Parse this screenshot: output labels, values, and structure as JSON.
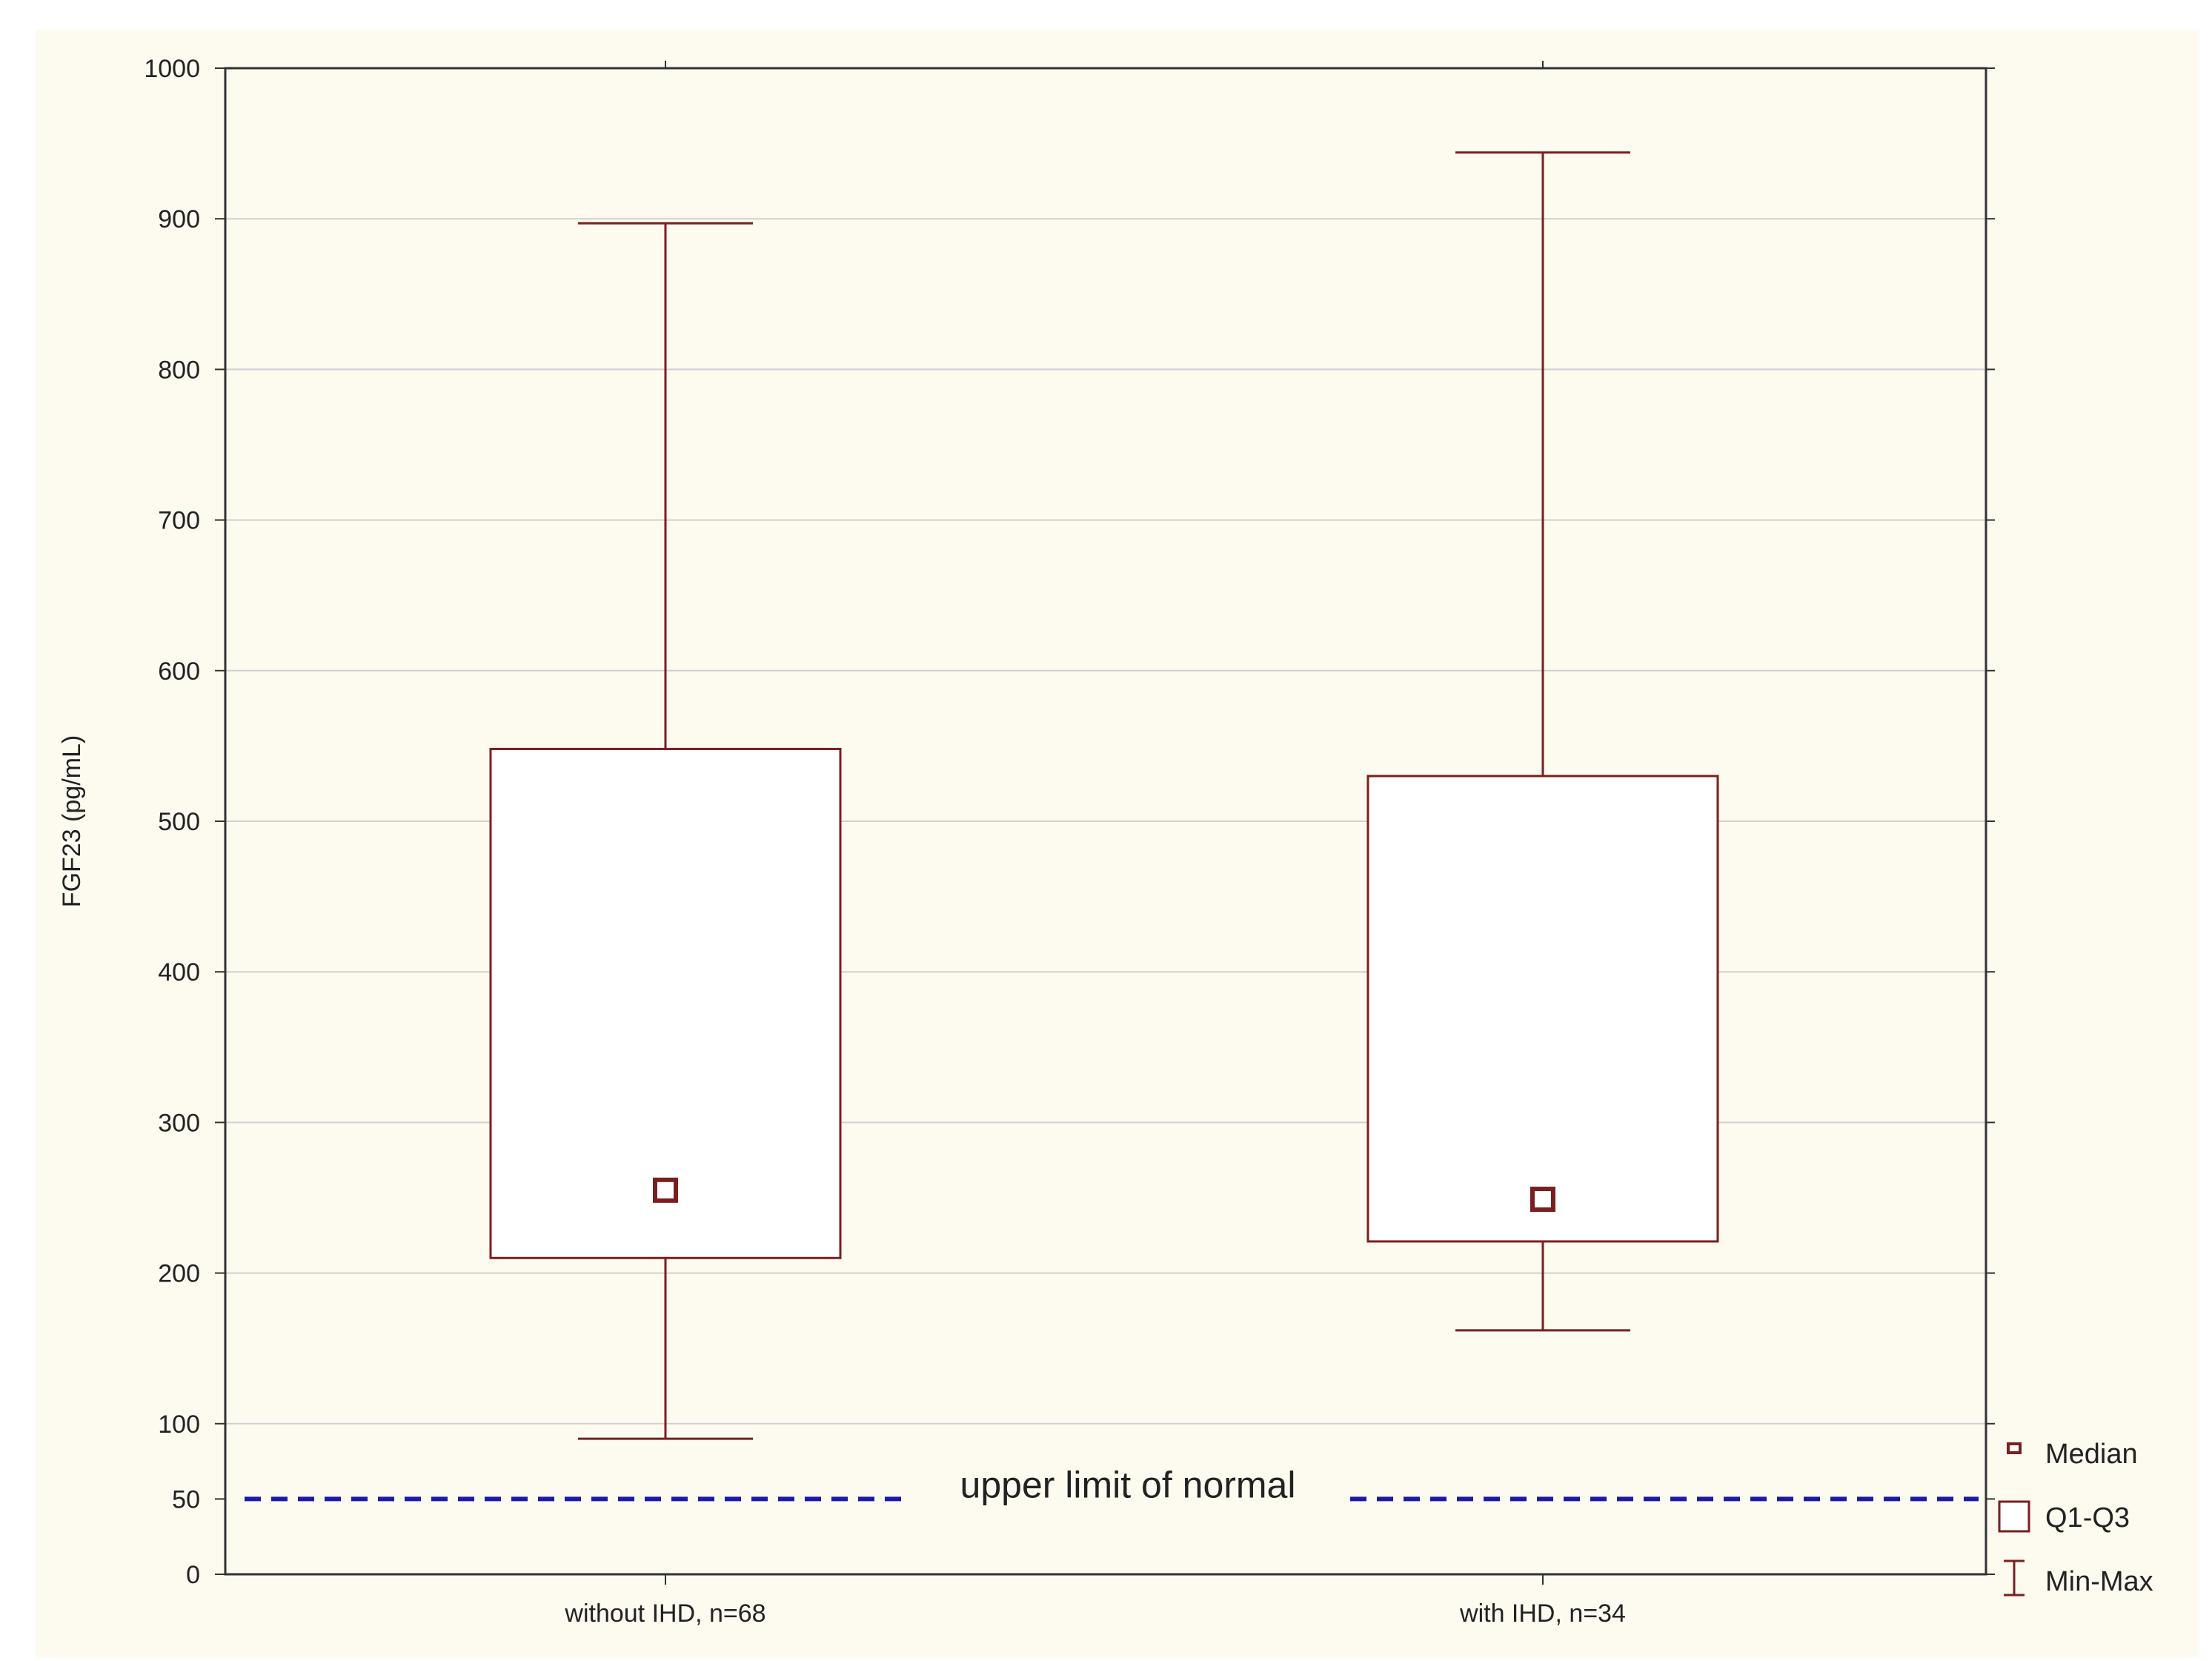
{
  "page": {
    "background_color": "#ffffff",
    "panel_color": "#fdfaf0"
  },
  "chart_data": {
    "type": "boxplot",
    "title": "",
    "xlabel": "",
    "ylabel": "FGF23 (pg/mL)",
    "ylim": [
      0,
      1000
    ],
    "yticks": [
      0,
      50,
      100,
      200,
      300,
      400,
      500,
      600,
      700,
      800,
      900,
      1000
    ],
    "grid": true,
    "categories": [
      "without IHD, n=68",
      "with IHD, n=34"
    ],
    "boxes": [
      {
        "category": "without IHD, n=68",
        "min": 90,
        "q1": 210,
        "median": 255,
        "q3": 548,
        "max": 897
      },
      {
        "category": "with IHD, n=34",
        "min": 162,
        "q1": 221,
        "median": 249,
        "q3": 530,
        "max": 944
      }
    ],
    "reference_line": {
      "value": 50,
      "label": "upper limit of normal",
      "style": "dashed",
      "color": "#1a1aa6"
    },
    "legend": {
      "position": "right",
      "entries": [
        "Median",
        "Q1-Q3",
        "Min-Max"
      ]
    },
    "colors": {
      "box": "#7a1f1f",
      "median_marker": "#7a1f1f",
      "grid": "#d0d0d0",
      "axis": "#333333"
    }
  }
}
